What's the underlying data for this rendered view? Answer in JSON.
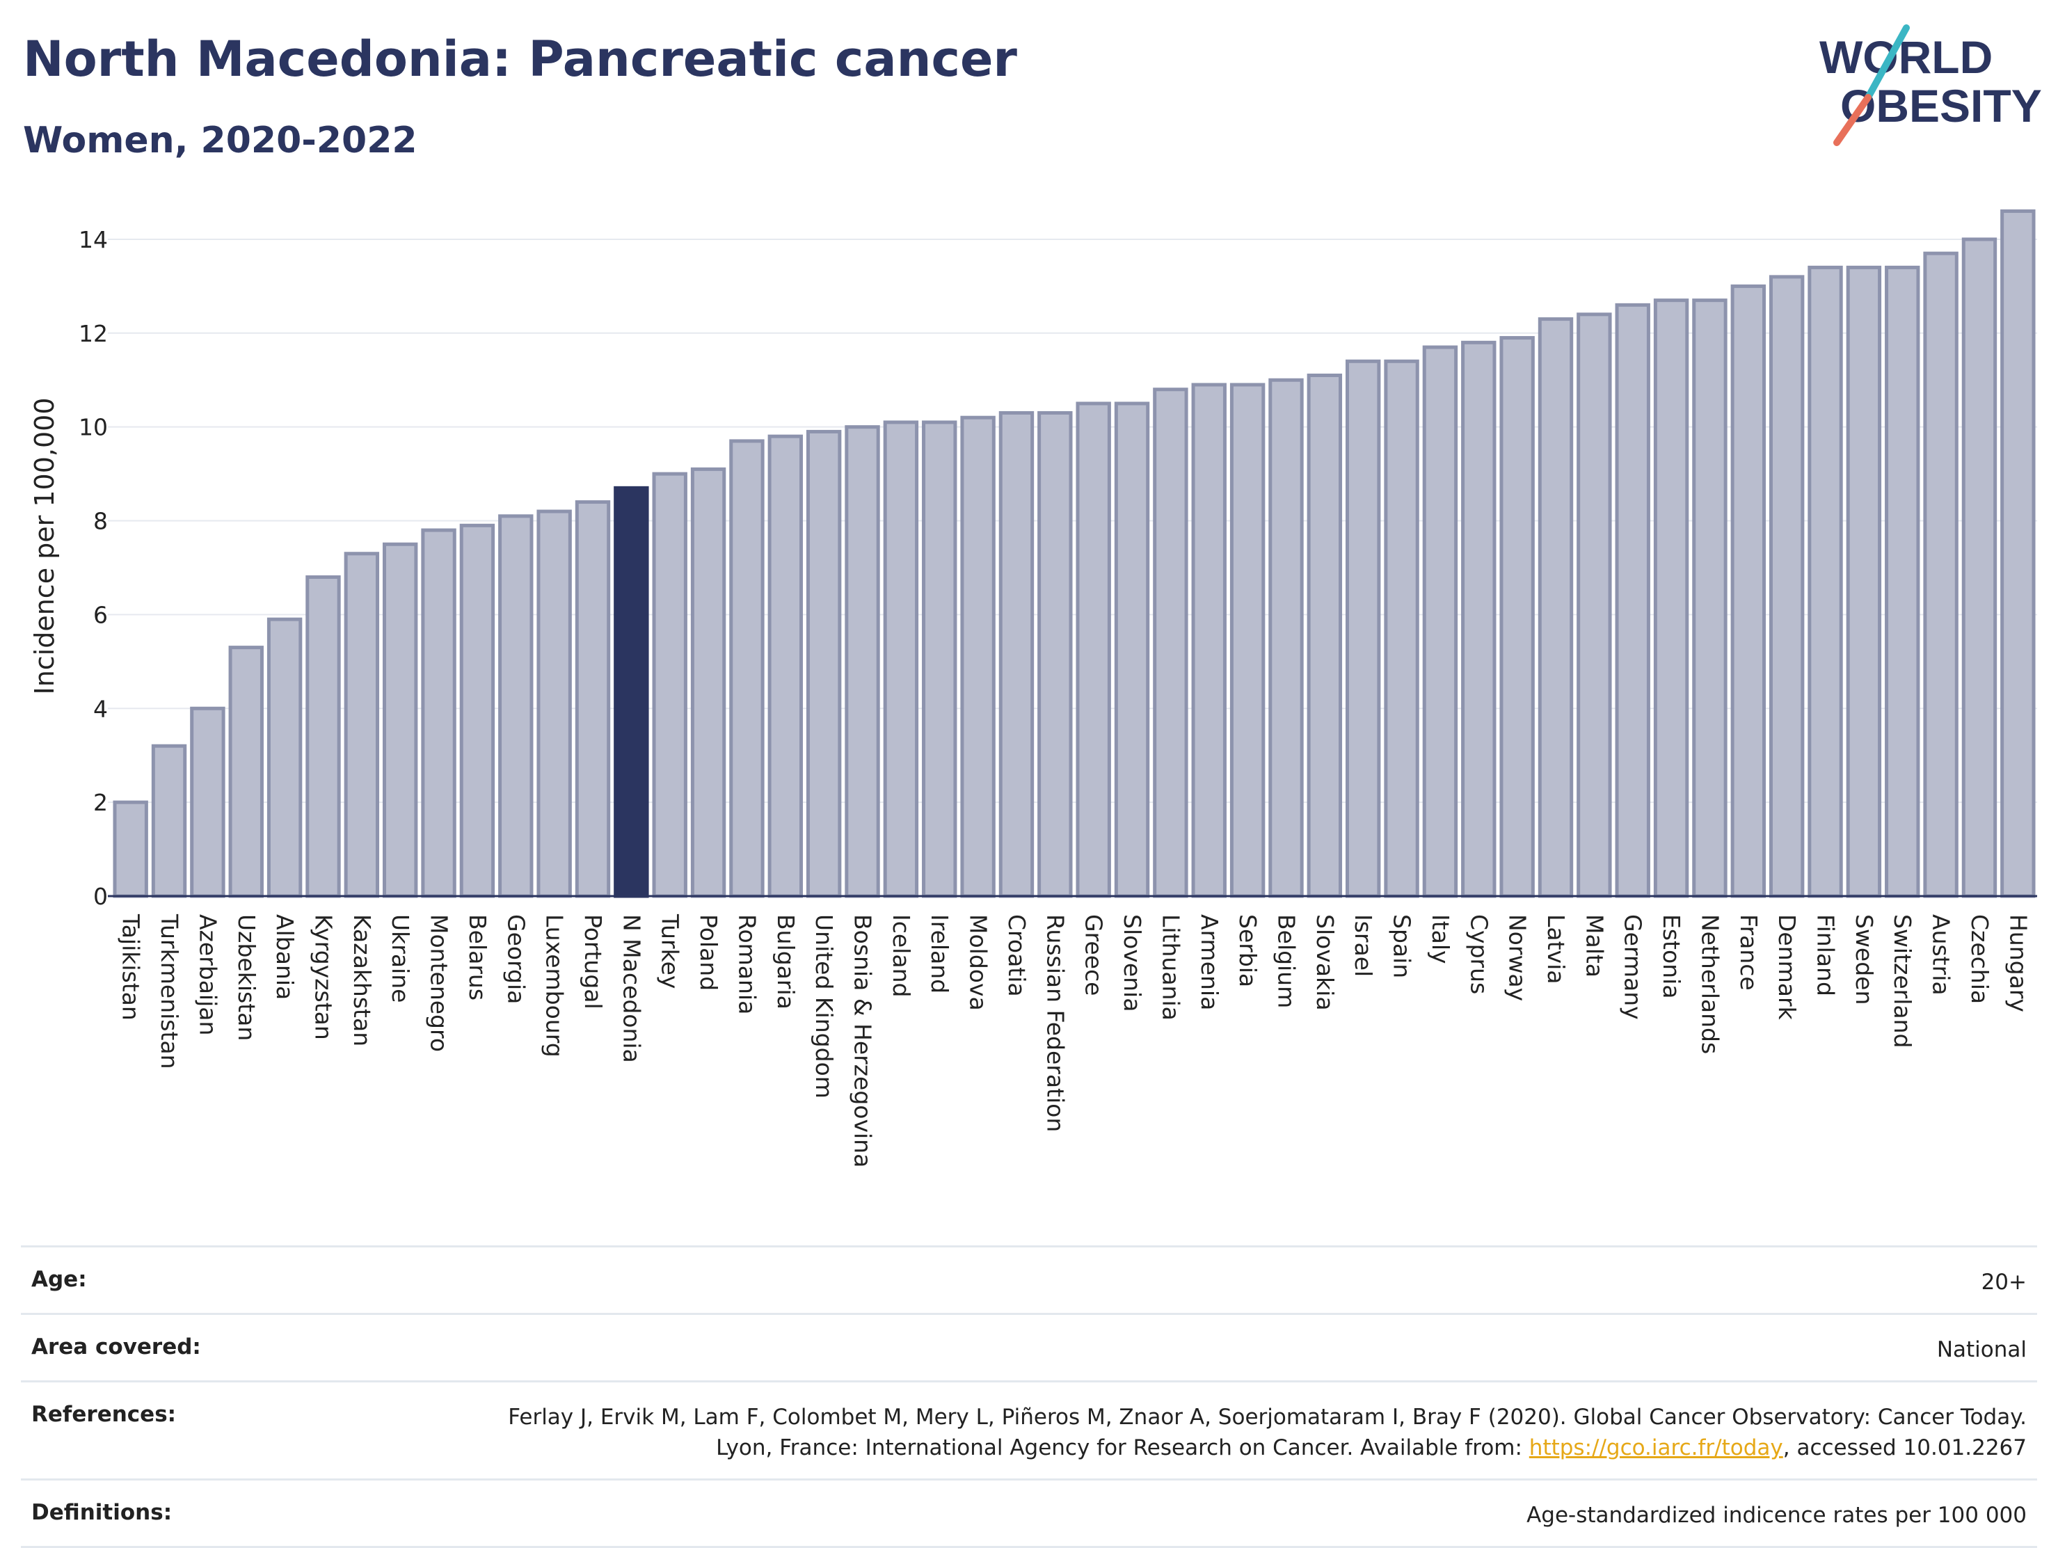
{
  "header": {
    "title": "North Macedonia: Pancreatic cancer",
    "subtitle": "Women, 2020-2022"
  },
  "logo": {
    "line1": "WORLD",
    "line2": "OBESITY"
  },
  "colors": {
    "bar": "#b9bdce",
    "bar_stroke": "#8d93ad",
    "highlight": "#2b3560",
    "title": "#2b3560",
    "logo_slash_teal": "#3bb6c4",
    "logo_slash_coral": "#e8705a",
    "link": "#e6a817"
  },
  "chart_data": {
    "type": "bar",
    "ylabel": "Incidence per 100,000",
    "ylim": [
      0,
      14.8
    ],
    "yticks": [
      0,
      2,
      4,
      6,
      8,
      10,
      12,
      14
    ],
    "highlight": "N Macedonia",
    "categories": [
      "Tajikistan",
      "Turkmenistan",
      "Azerbaijan",
      "Uzbekistan",
      "Albania",
      "Kyrgyzstan",
      "Kazakhstan",
      "Ukraine",
      "Montenegro",
      "Belarus",
      "Georgia",
      "Luxembourg",
      "Portugal",
      "N Macedonia",
      "Turkey",
      "Poland",
      "Romania",
      "Bulgaria",
      "United Kingdom",
      "Bosnia & Herzegovina",
      "Iceland",
      "Ireland",
      "Moldova",
      "Croatia",
      "Russian Federation",
      "Greece",
      "Slovenia",
      "Lithuania",
      "Armenia",
      "Serbia",
      "Belgium",
      "Slovakia",
      "Israel",
      "Spain",
      "Italy",
      "Cyprus",
      "Norway",
      "Latvia",
      "Malta",
      "Germany",
      "Estonia",
      "Netherlands",
      "France",
      "Denmark",
      "Finland",
      "Sweden",
      "Switzerland",
      "Austria",
      "Czechia",
      "Hungary"
    ],
    "values": [
      2.0,
      3.2,
      4.0,
      5.3,
      5.9,
      6.8,
      7.3,
      7.5,
      7.8,
      7.9,
      8.1,
      8.2,
      8.4,
      8.7,
      9.0,
      9.1,
      9.7,
      9.8,
      9.9,
      10.0,
      10.1,
      10.1,
      10.2,
      10.3,
      10.3,
      10.5,
      10.5,
      10.8,
      10.9,
      10.9,
      11.0,
      11.1,
      11.4,
      11.4,
      11.7,
      11.8,
      11.9,
      12.3,
      12.4,
      12.6,
      12.7,
      12.7,
      13.0,
      13.2,
      13.4,
      13.4,
      13.4,
      13.7,
      14.0,
      14.6
    ]
  },
  "info": {
    "age_label": "Age:",
    "age_value": "20+",
    "area_label": "Area covered:",
    "area_value": "National",
    "references_label": "References:",
    "references_text": "Ferlay J, Ervik M, Lam F, Colombet M, Mery L, Piñeros M, Znaor A, Soerjomataram I, Bray F (2020). Global Cancer Observatory: Cancer Today. Lyon, France: International Agency for Research on Cancer. Available from:",
    "references_link": "https://gco.iarc.fr/today",
    "references_suffix": ", accessed 10.01.2267",
    "definitions_label": "Definitions:",
    "definitions_value": "Age-standardized indicence rates per 100 000"
  }
}
